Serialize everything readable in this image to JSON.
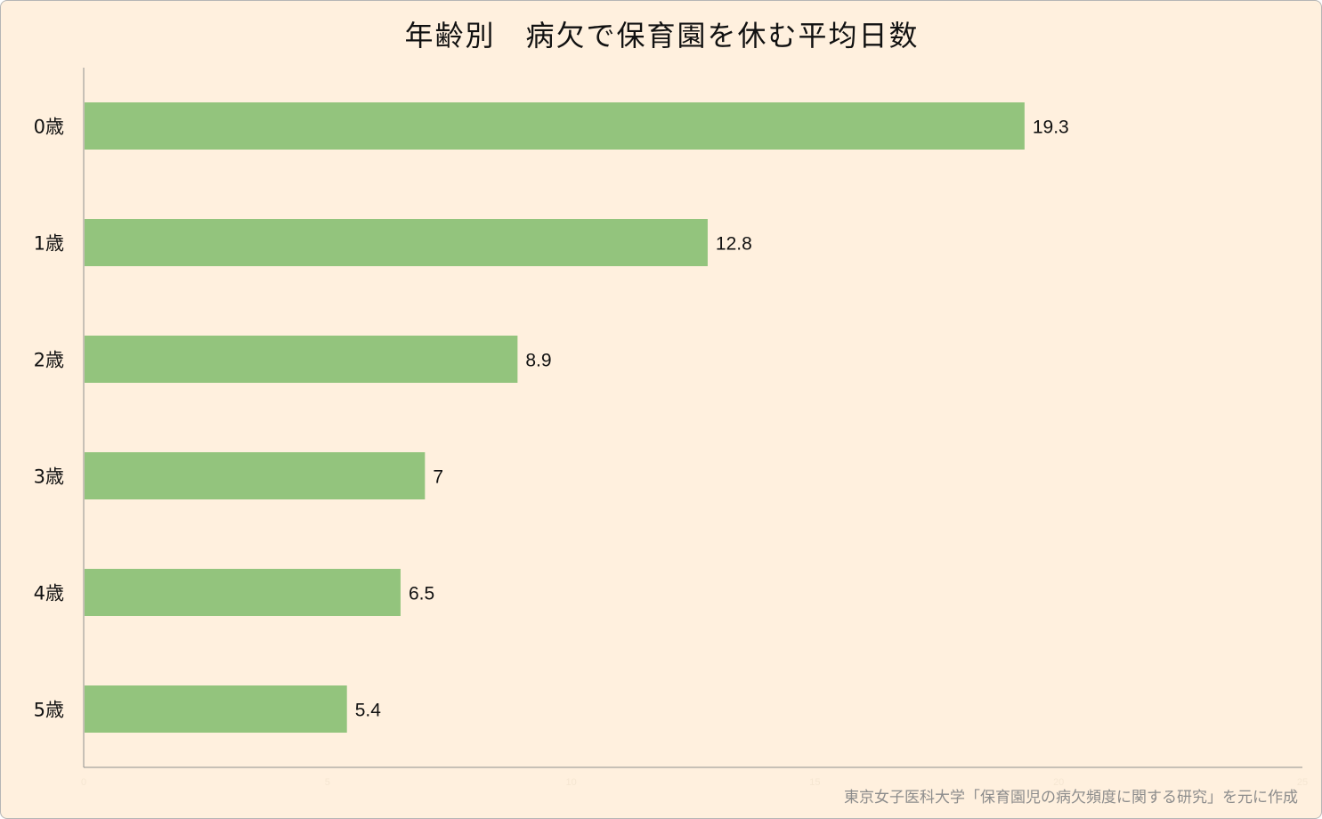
{
  "chart_data": {
    "type": "bar",
    "orientation": "horizontal",
    "title": "年齢別　病欠で保育園を休む平均日数",
    "categories": [
      "0歳",
      "1歳",
      "2歳",
      "3歳",
      "4歳",
      "5歳"
    ],
    "values": [
      19.3,
      12.8,
      8.9,
      7,
      6.5,
      5.4
    ],
    "value_labels": [
      "19.3",
      "12.8",
      "8.9",
      "7",
      "6.5",
      "5.4"
    ],
    "xlim": [
      0,
      25
    ],
    "xticks": [
      "0",
      "5",
      "10",
      "15",
      "20",
      "25"
    ],
    "xlabel": "",
    "ylabel": "",
    "grid": false,
    "legend": "none",
    "bar_color": "#93c47d",
    "background_color": "#fff0de"
  },
  "source_note": "東京女子医科大学「保育園児の病欠頻度に関する研究」を元に作成"
}
